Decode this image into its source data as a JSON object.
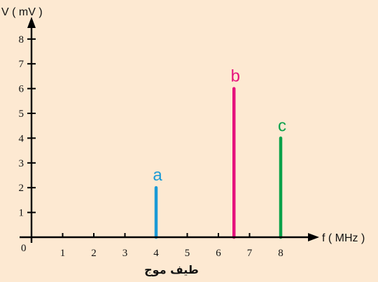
{
  "chart_data": {
    "type": "bar",
    "title": "طيف موج",
    "xlabel": "f ( MHz )",
    "ylabel": "V ( mV )",
    "origin_label": "0",
    "xlim": [
      0,
      9.1
    ],
    "ylim": [
      0,
      8.6
    ],
    "x_ticks": [
      1,
      2,
      3,
      4,
      5,
      6,
      7,
      8
    ],
    "y_ticks": [
      1,
      2,
      3,
      4,
      5,
      6,
      7,
      8
    ],
    "series": [
      {
        "name": "a",
        "x": 4,
        "value": 2,
        "color": "#1b9ad6"
      },
      {
        "name": "b",
        "x": 6.5,
        "value": 6,
        "color": "#e6127d"
      },
      {
        "name": "c",
        "x": 8,
        "value": 4,
        "color": "#0aa14a"
      }
    ]
  }
}
